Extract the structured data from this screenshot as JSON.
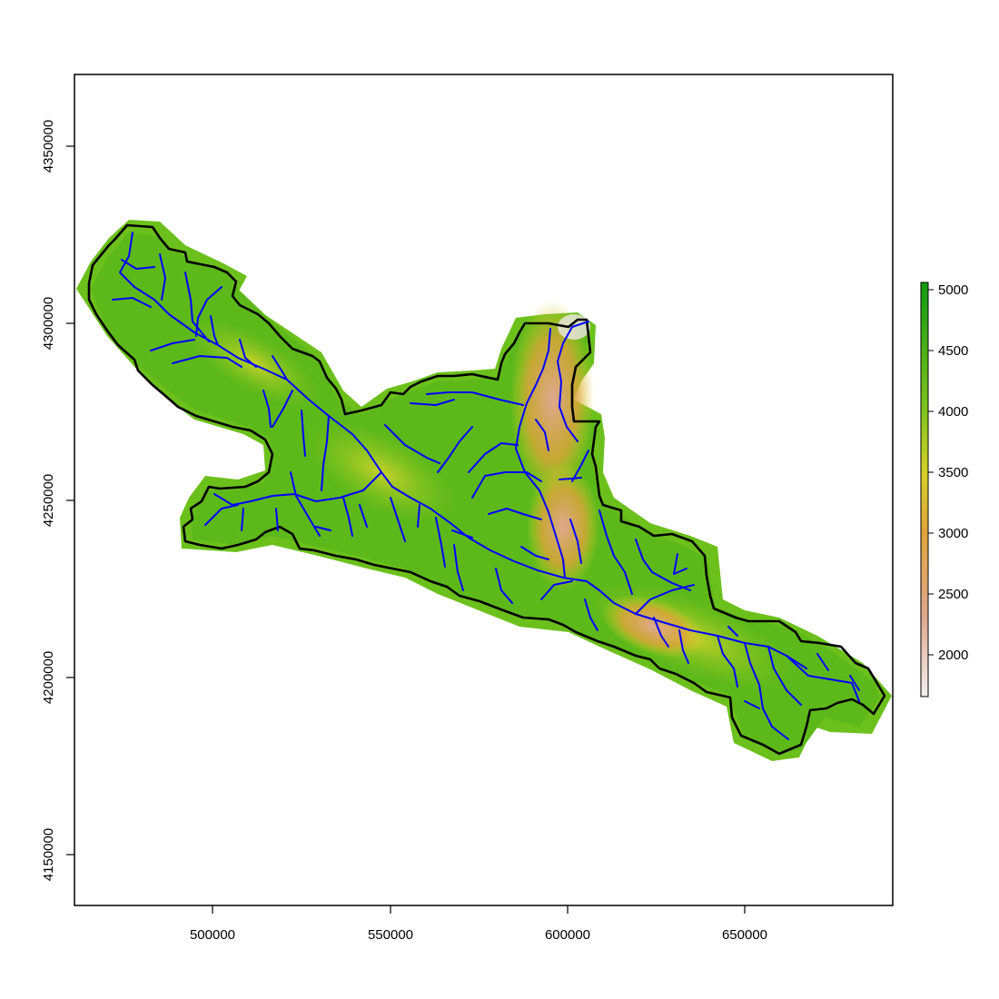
{
  "map": {
    "x_ticks": [
      "500000",
      "550000",
      "600000",
      "650000"
    ],
    "y_ticks": [
      "4150000",
      "4200000",
      "4250000",
      "4300000",
      "4350000"
    ],
    "x_range": [
      460000,
      690000
    ],
    "y_range": [
      4135000,
      4370000
    ],
    "colors": {
      "frame": "#000000",
      "boundary": "#000000",
      "rivers": "#0000ff",
      "ramp_high": "#119911",
      "ramp_mid": "#d6d12a",
      "ramp_orange": "#e0a33a",
      "ramp_low": "#f4f0f0"
    }
  },
  "legend": {
    "labels": [
      "5000",
      "4500",
      "4000",
      "3500",
      "3000",
      "2500",
      "2000"
    ],
    "range": [
      1650,
      5050
    ],
    "stops": [
      {
        "value": 1650,
        "color": "#f4f0f0"
      },
      {
        "value": 2300,
        "color": "#dea88f"
      },
      {
        "value": 3000,
        "color": "#e0a33a"
      },
      {
        "value": 3500,
        "color": "#d6d12a"
      },
      {
        "value": 4000,
        "color": "#7fc31e"
      },
      {
        "value": 5050,
        "color": "#119911"
      }
    ]
  }
}
